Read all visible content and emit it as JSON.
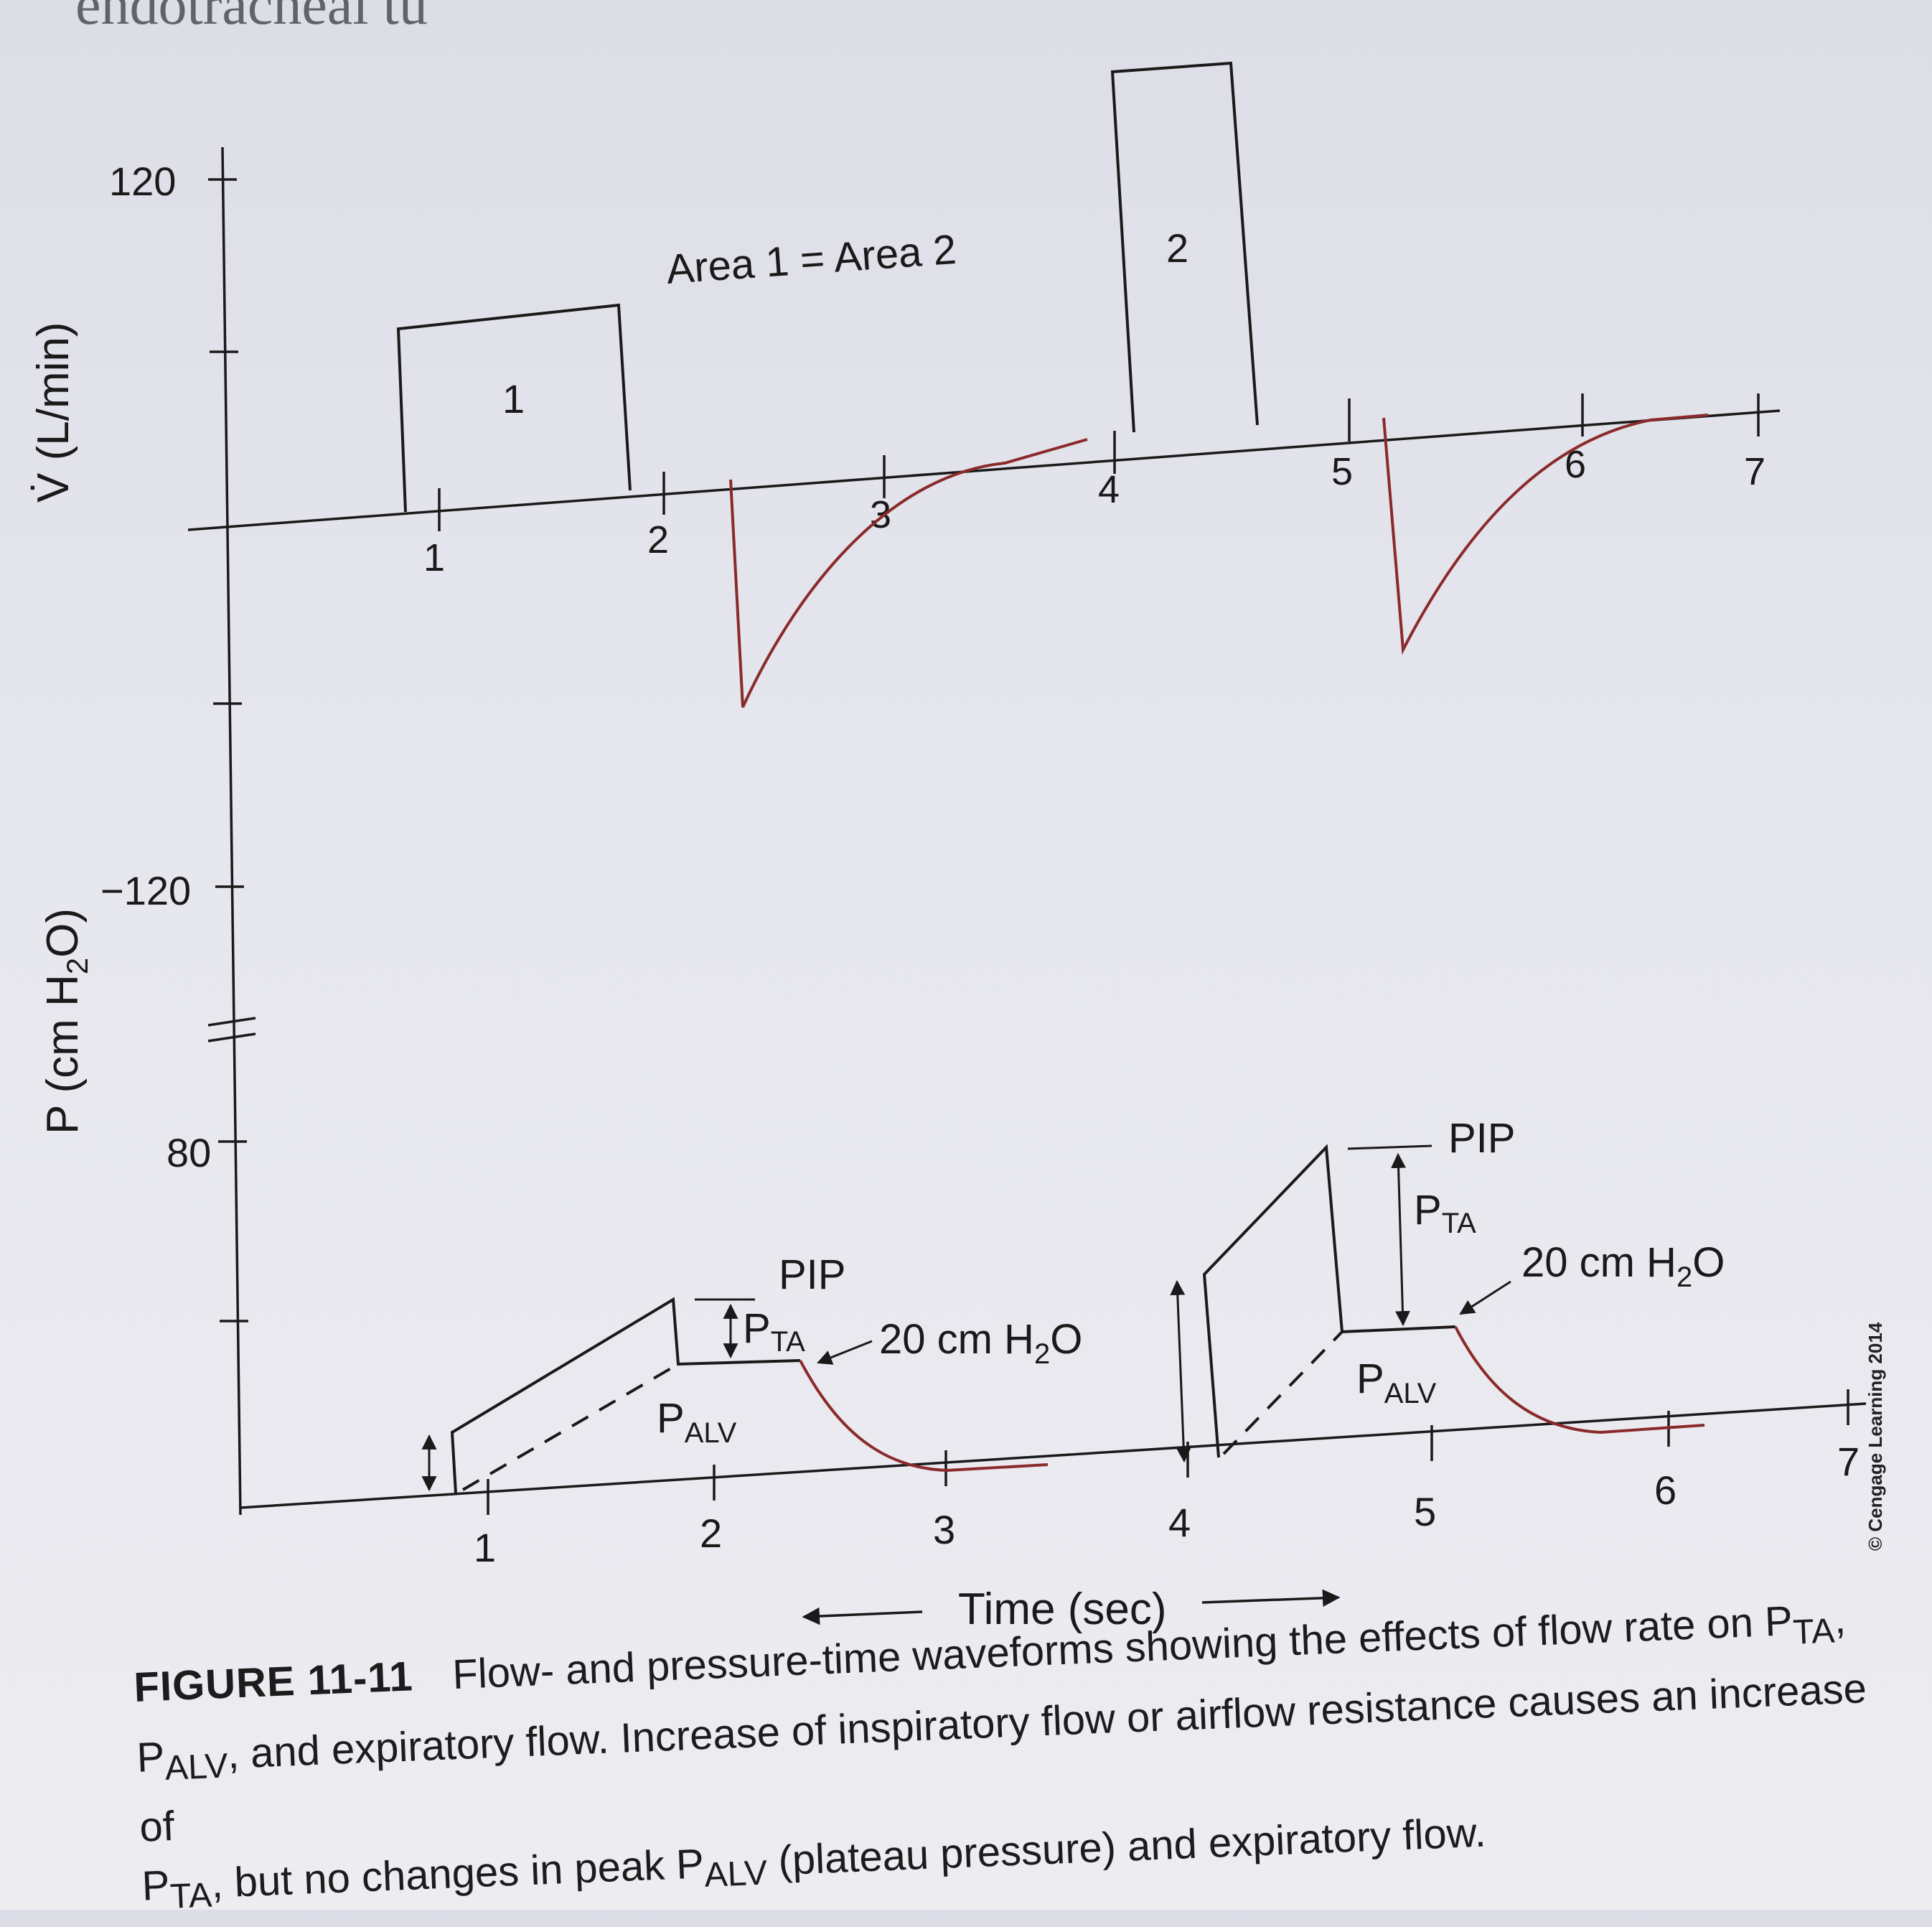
{
  "page_header": "endotracheal tu",
  "flow_panel": {
    "axis_label_prefix": "V̇",
    "axis_label": "(L/min)",
    "y_ticks": {
      "top": "120",
      "bottom": "−120"
    },
    "area_note": "Area 1 = Area 2",
    "box_labels": [
      "1",
      "2"
    ],
    "x_ticks_left": [
      "1",
      "2",
      "3",
      "4"
    ],
    "x_ticks_right": [
      "5",
      "6",
      "7"
    ]
  },
  "pressure_panel": {
    "axis_label": "P (cm H",
    "axis_label_sub": "2",
    "axis_label_end": "O)",
    "y_tick": "80",
    "x_ticks": [
      "1",
      "2",
      "3",
      "4",
      "5",
      "6",
      "7"
    ],
    "left": {
      "pip": "PIP",
      "pta": "P",
      "pta_sub": "TA",
      "palv": "P",
      "palv_sub": "ALV",
      "note": "20 cm H",
      "note_sub": "2",
      "note_end": "O"
    },
    "right": {
      "pip": "PIP",
      "pta": "P",
      "pta_sub": "TA",
      "palv": "P",
      "palv_sub": "ALV",
      "note": "20 cm H",
      "note_sub": "2",
      "note_end": "O"
    }
  },
  "time_axis_label": "Time (sec)",
  "colors": {
    "curve": "#8a2a2a",
    "ink": "#1a1a1a"
  },
  "caption": {
    "label": "FIGURE 11-11",
    "line1": "Flow- and pressure-time waveforms showing the effects of flow rate on P",
    "line1_sub": "TA",
    "line1_end": ",",
    "line2_sub_a": "ALV",
    "line2": ", and expiratory flow. Increase of inspiratory flow or airflow resistance causes an increase of",
    "line3_a": "P",
    "line3_sub_a": "TA",
    "line3_b": ", but no changes in peak P",
    "line3_sub_b": "ALV",
    "line3_c": " (plateau pressure) and expiratory flow.",
    "line2_p": "P"
  },
  "copyright": "© Cengage Learning 2014"
}
